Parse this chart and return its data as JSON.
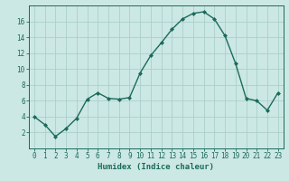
{
  "x": [
    0,
    1,
    2,
    3,
    4,
    5,
    6,
    7,
    8,
    9,
    10,
    11,
    12,
    13,
    14,
    15,
    16,
    17,
    18,
    19,
    20,
    21,
    22,
    23
  ],
  "y": [
    4.0,
    3.0,
    1.5,
    2.5,
    3.8,
    6.2,
    7.0,
    6.3,
    6.2,
    6.4,
    9.5,
    11.7,
    13.3,
    15.0,
    16.3,
    17.0,
    17.2,
    16.3,
    14.2,
    10.7,
    6.3,
    6.0,
    4.8,
    7.0
  ],
  "xlabel": "Humidex (Indice chaleur)",
  "line_color": "#1a6b5a",
  "marker": "D",
  "marker_size": 2.0,
  "bg_color": "#cce8e4",
  "grid_color": "#aacfcb",
  "tick_color": "#1a6b5a",
  "label_color": "#1a6b5a",
  "xlim": [
    -0.5,
    23.5
  ],
  "ylim": [
    0,
    18
  ],
  "yticks": [
    2,
    4,
    6,
    8,
    10,
    12,
    14,
    16
  ],
  "xticks": [
    0,
    1,
    2,
    3,
    4,
    5,
    6,
    7,
    8,
    9,
    10,
    11,
    12,
    13,
    14,
    15,
    16,
    17,
    18,
    19,
    20,
    21,
    22,
    23
  ],
  "xtick_labels": [
    "0",
    "1",
    "2",
    "3",
    "4",
    "5",
    "6",
    "7",
    "8",
    "9",
    "10",
    "11",
    "12",
    "13",
    "14",
    "15",
    "16",
    "17",
    "18",
    "19",
    "20",
    "21",
    "22",
    "23"
  ],
  "ytick_labels": [
    "2",
    "4",
    "6",
    "8",
    "10",
    "12",
    "14",
    "16"
  ],
  "xlabel_fontsize": 6.5,
  "tick_fontsize": 5.5
}
